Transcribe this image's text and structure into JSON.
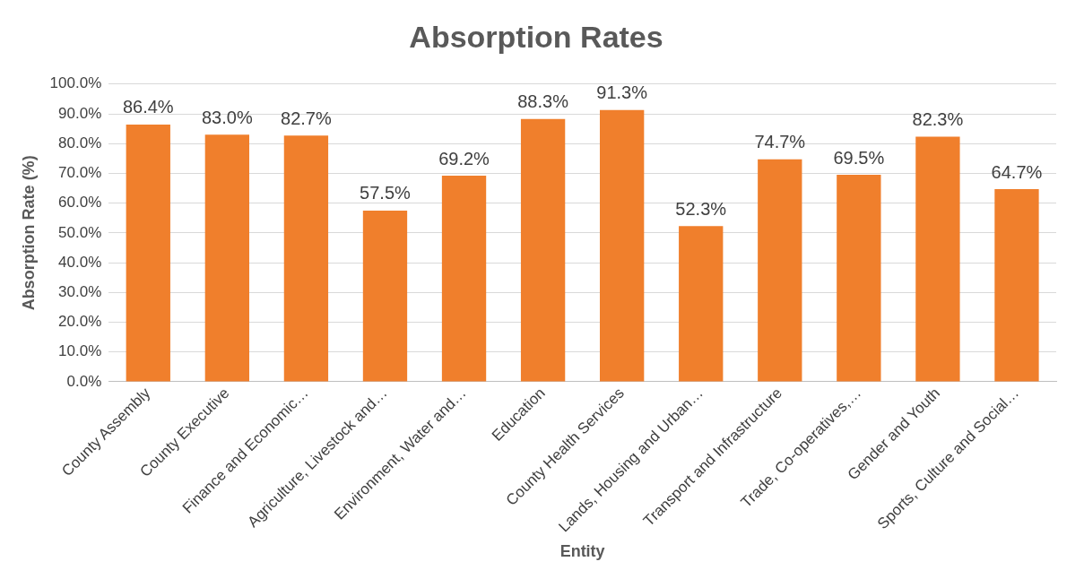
{
  "chart_data": {
    "type": "bar",
    "title": "Absorption Rates",
    "xlabel": "Entity",
    "ylabel": "Absorption Rate (%)",
    "categories": [
      "County Assembly",
      "County Executive",
      "Finance and Economic…",
      "Agriculture, Livestock and…",
      "Environment, Water and…",
      "Education",
      "County Health Services",
      "Lands, Housing and Urban…",
      "Transport and Infrastructure",
      "Trade, Co-operatives,…",
      "Gender and Youth",
      "Sports, Culture and Social…"
    ],
    "values": [
      86.4,
      83.0,
      82.7,
      57.5,
      69.2,
      88.3,
      91.3,
      52.3,
      74.7,
      69.5,
      82.3,
      64.7
    ],
    "value_labels": [
      "86.4%",
      "83.0%",
      "82.7%",
      "57.5%",
      "69.2%",
      "88.3%",
      "91.3%",
      "52.3%",
      "74.7%",
      "69.5%",
      "82.3%",
      "64.7%"
    ],
    "color": "#f07f2c",
    "ylim": [
      0,
      100
    ],
    "yticks": [
      {
        "value": 0,
        "label": "0.0%"
      },
      {
        "value": 10,
        "label": "10.0%"
      },
      {
        "value": 20,
        "label": "20.0%"
      },
      {
        "value": 30,
        "label": "30.0%"
      },
      {
        "value": 40,
        "label": "40.0%"
      },
      {
        "value": 50,
        "label": "50.0%"
      },
      {
        "value": 60,
        "label": "60.0%"
      },
      {
        "value": 70,
        "label": "70.0%"
      },
      {
        "value": 80,
        "label": "80.0%"
      },
      {
        "value": 90,
        "label": "90.0%"
      },
      {
        "value": 100,
        "label": "100.0%"
      }
    ],
    "grid": "y"
  }
}
